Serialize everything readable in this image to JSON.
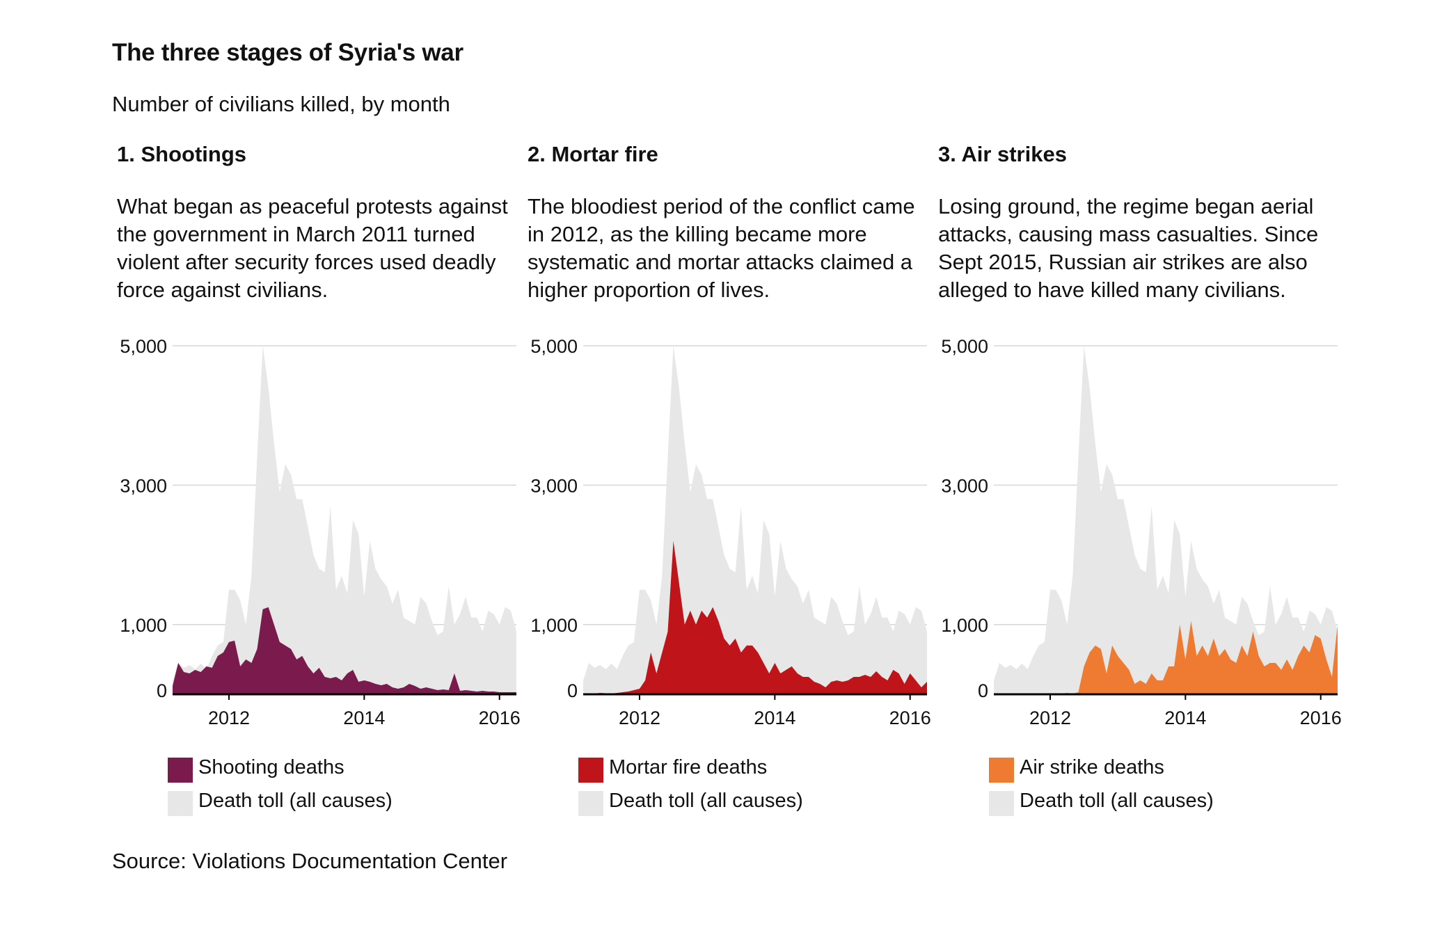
{
  "title": "The three stages of Syria's war",
  "subtitle": "Number of civilians killed, by month",
  "source": "Source: Violations Documentation Center",
  "colors": {
    "total": "#e7e7e7",
    "shooting": "#7b1a4d",
    "mortar": "#c0141b",
    "airstrike": "#ee7b31",
    "grid": "#d6d6d6",
    "axis": "#000000"
  },
  "panels": [
    {
      "heading": "1. Shootings",
      "description": "What began as peaceful protests against the government in March 2011 turned violent after security forces used deadly force against civilians.",
      "legend": {
        "series_label": "Shooting deaths",
        "total_label": "Death toll (all causes)"
      }
    },
    {
      "heading": "2. Mortar fire",
      "description": "The bloodiest period of the conflict came in 2012, as the killing became more systematic and mortar attacks claimed a higher proportion of lives.",
      "legend": {
        "series_label": "Mortar fire deaths",
        "total_label": "Death toll (all causes)"
      }
    },
    {
      "heading": "3. Air strikes",
      "description": "Losing ground, the regime began aerial attacks, causing mass casualties. Since Sept 2015, Russian air strikes are also alleged to have killed many civilians.",
      "legend": {
        "series_label": "Air strike deaths",
        "total_label": "Death toll (all causes)"
      }
    }
  ],
  "chart_data": {
    "type": "area",
    "title": "The three stages of Syria's war",
    "subtitle": "Number of civilians killed, by month",
    "x_start": "2011-03",
    "months": 62,
    "y_ticks": [
      0,
      1000,
      3000,
      5000
    ],
    "y_tick_labels": [
      "0",
      "1,000",
      "3,000",
      "5,000"
    ],
    "ylim": [
      0,
      5000
    ],
    "x_ticks": [
      2012,
      2014,
      2016
    ],
    "x_tick_labels": [
      "2012",
      "2014",
      "2016"
    ],
    "total": [
      200,
      450,
      380,
      420,
      360,
      440,
      360,
      550,
      700,
      750,
      1500,
      1500,
      1350,
      1000,
      1700,
      3400,
      5000,
      4400,
      3600,
      2900,
      3300,
      3150,
      2800,
      2800,
      2400,
      2000,
      1800,
      1750,
      2700,
      1500,
      1700,
      1450,
      2500,
      2300,
      1400,
      2200,
      1800,
      1650,
      1550,
      1300,
      1500,
      1100,
      1050,
      1000,
      1400,
      1300,
      1050,
      850,
      900,
      1550,
      1000,
      1150,
      1400,
      1100,
      1100,
      900,
      1200,
      1150,
      1000,
      1250,
      1200,
      900
    ],
    "series": [
      {
        "name": "Shooting deaths",
        "values": [
          120,
          450,
          320,
          300,
          350,
          320,
          400,
          380,
          550,
          600,
          750,
          770,
          400,
          500,
          450,
          650,
          1220,
          1250,
          1000,
          750,
          700,
          650,
          500,
          550,
          400,
          300,
          380,
          250,
          230,
          250,
          200,
          300,
          350,
          180,
          200,
          180,
          150,
          130,
          150,
          100,
          80,
          100,
          150,
          120,
          80,
          100,
          80,
          60,
          70,
          60,
          300,
          50,
          60,
          50,
          40,
          50,
          40,
          40,
          30,
          30,
          30,
          30
        ]
      },
      {
        "name": "Mortar fire deaths",
        "values": [
          5,
          15,
          10,
          20,
          15,
          10,
          20,
          30,
          40,
          60,
          80,
          200,
          600,
          300,
          600,
          900,
          2200,
          1600,
          1000,
          1200,
          1000,
          1200,
          1100,
          1250,
          1050,
          800,
          700,
          800,
          600,
          700,
          700,
          600,
          450,
          300,
          450,
          300,
          350,
          400,
          300,
          250,
          250,
          180,
          150,
          100,
          180,
          200,
          180,
          200,
          250,
          250,
          280,
          250,
          330,
          250,
          200,
          350,
          300,
          150,
          300,
          200,
          100,
          180
        ]
      },
      {
        "name": "Air strike deaths",
        "values": [
          0,
          0,
          0,
          0,
          0,
          0,
          0,
          0,
          0,
          0,
          0,
          0,
          10,
          20,
          10,
          30,
          400,
          600,
          700,
          650,
          300,
          700,
          550,
          450,
          350,
          150,
          200,
          150,
          300,
          200,
          200,
          400,
          400,
          1000,
          500,
          1050,
          550,
          700,
          550,
          800,
          550,
          650,
          500,
          450,
          700,
          550,
          900,
          550,
          400,
          450,
          450,
          350,
          500,
          350,
          550,
          700,
          600,
          850,
          800,
          500,
          250,
          1000
        ]
      }
    ]
  }
}
